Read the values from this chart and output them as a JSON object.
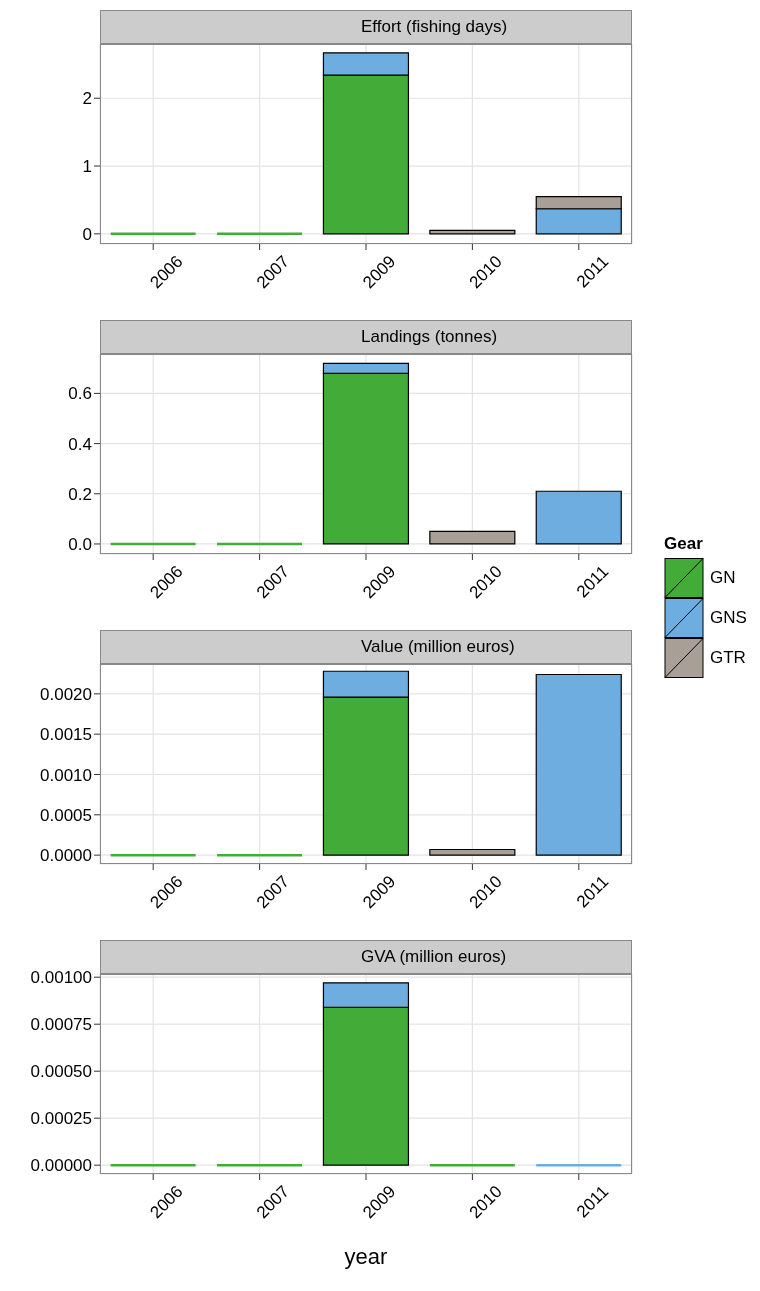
{
  "chart_data": [
    {
      "type": "bar",
      "title": "Effort (fishing days)",
      "categories": [
        "2006",
        "2007",
        "2009",
        "2010",
        "2011"
      ],
      "stacked": true,
      "grid": true,
      "ylim": [
        -0.15,
        2.8
      ],
      "yticks": [
        0,
        1,
        2
      ],
      "series": [
        {
          "color": "#43ab38",
          "values": [
            0,
            0,
            2.34,
            null,
            null
          ]
        },
        {
          "color": "#6daddf",
          "values": [
            null,
            null,
            0.33,
            null,
            0.37
          ]
        },
        {
          "color": "#a89f97",
          "values": [
            null,
            null,
            null,
            0.05,
            0.18
          ]
        }
      ]
    },
    {
      "type": "bar",
      "title": "Landings (tonnes)",
      "categories": [
        "2006",
        "2007",
        "2009",
        "2010",
        "2011"
      ],
      "stacked": true,
      "grid": true,
      "legend": "right",
      "legend_title": "Gear",
      "ylim": [
        -0.04,
        0.757
      ],
      "yticks": [
        {
          "value": 0,
          "label": "0.0"
        },
        0.2,
        0.4,
        0.6
      ],
      "series": [
        {
          "name": "GN",
          "color": "#43ab38",
          "values": [
            0,
            0,
            0.68,
            null,
            null
          ]
        },
        {
          "name": "GNS",
          "color": "#6daddf",
          "values": [
            null,
            null,
            0.04,
            null,
            0.21
          ]
        },
        {
          "name": "GTR",
          "color": "#a89f97",
          "values": [
            null,
            null,
            null,
            0.05,
            null
          ]
        }
      ]
    },
    {
      "type": "bar",
      "title": "Value (million euros)",
      "categories": [
        "2006",
        "2007",
        "2009",
        "2010",
        "2011"
      ],
      "stacked": true,
      "grid": true,
      "ylim": [
        -0.00011,
        0.00237
      ],
      "yticks": [
        {
          "value": 0,
          "label": "0.0000"
        },
        {
          "value": 0.0005,
          "label": "0.0005"
        },
        {
          "value": 0.001,
          "label": "0.0010"
        },
        {
          "value": 0.0015,
          "label": "0.0015"
        },
        {
          "value": 0.002,
          "label": "0.0020"
        }
      ],
      "series": [
        {
          "color": "#43ab38",
          "values": [
            0,
            0,
            0.00196,
            null,
            null
          ]
        },
        {
          "color": "#6daddf",
          "values": [
            null,
            null,
            0.00032,
            null,
            0.00224
          ]
        },
        {
          "color": "#a89f97",
          "values": [
            null,
            null,
            null,
            7e-05,
            null
          ]
        }
      ]
    },
    {
      "type": "bar",
      "title": "GVA (million euros)",
      "xlabel": "year",
      "categories": [
        "2006",
        "2007",
        "2009",
        "2010",
        "2011"
      ],
      "stacked": true,
      "grid": true,
      "ylim": [
        -4.7e-05,
        0.001017
      ],
      "yticks": [
        {
          "value": 0,
          "label": "0.00000"
        },
        {
          "value": 0.00025,
          "label": "0.00025"
        },
        {
          "value": 0.0005,
          "label": "0.00050"
        },
        {
          "value": 0.00075,
          "label": "0.00075"
        },
        {
          "value": 0.001,
          "label": "0.00100"
        }
      ],
      "series": [
        {
          "color": "#43ab38",
          "values": [
            0,
            0,
            0.00084,
            0,
            null
          ]
        },
        {
          "color": "#6daddf",
          "values": [
            null,
            null,
            0.00013,
            null,
            0
          ]
        },
        {
          "color": "#a89f97",
          "values": [
            null,
            null,
            null,
            null,
            null
          ]
        }
      ]
    }
  ]
}
